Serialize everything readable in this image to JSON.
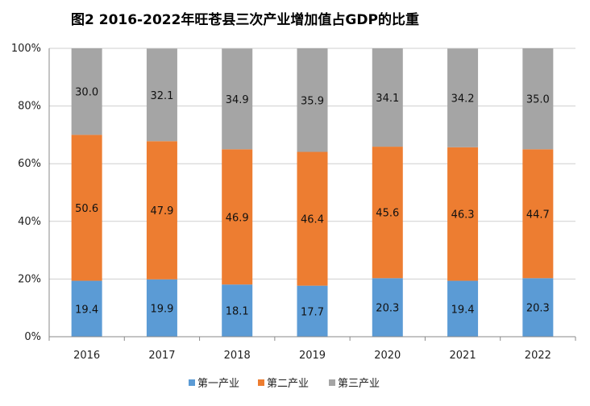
{
  "chart_data": {
    "type": "bar",
    "stacked": true,
    "percent": true,
    "title": "图2   2016-2022年旺苍县三次产业增加值占GDP的比重",
    "categories": [
      "2016",
      "2017",
      "2018",
      "2019",
      "2020",
      "2021",
      "2022"
    ],
    "series": [
      {
        "name": "第一产业",
        "color": "#5B9BD5",
        "values": [
          19.4,
          19.9,
          18.1,
          17.7,
          20.3,
          19.4,
          20.3
        ]
      },
      {
        "name": "第二产业",
        "color": "#ED7D31",
        "values": [
          50.6,
          47.9,
          46.9,
          46.4,
          45.6,
          46.3,
          44.7
        ]
      },
      {
        "name": "第三产业",
        "color": "#A5A5A5",
        "values": [
          30.0,
          32.1,
          34.9,
          35.9,
          34.1,
          34.2,
          35.0
        ]
      }
    ],
    "y_ticks": [
      "0%",
      "20%",
      "40%",
      "60%",
      "80%",
      "100%"
    ],
    "ylim": [
      0,
      100
    ],
    "grid": true,
    "legend": "bottom"
  }
}
